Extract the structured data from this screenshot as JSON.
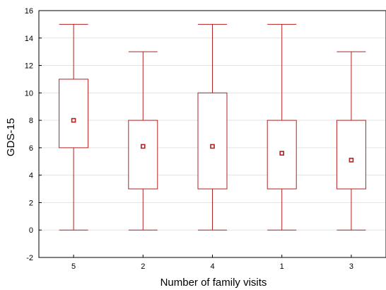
{
  "chart_data": {
    "type": "box",
    "title": "",
    "xlabel": "Number of family visits",
    "ylabel": "GDS-15",
    "ylim": [
      -2,
      16
    ],
    "yticks": [
      -2,
      0,
      2,
      4,
      6,
      8,
      10,
      12,
      14,
      16
    ],
    "grid": true,
    "colors": {
      "box": "#b22222",
      "median_marker": "#b22222",
      "grid": "#e3e3e3",
      "axis": "#000000"
    },
    "categories": [
      "5",
      "2",
      "4",
      "1",
      "3"
    ],
    "boxes": [
      {
        "category": "5",
        "min": 0,
        "q1": 6,
        "median": 8.0,
        "q3": 11,
        "max": 15
      },
      {
        "category": "2",
        "min": 0,
        "q1": 3,
        "median": 6.1,
        "q3": 8,
        "max": 13
      },
      {
        "category": "4",
        "min": 0,
        "q1": 3,
        "median": 6.1,
        "q3": 10,
        "max": 15
      },
      {
        "category": "1",
        "min": 0,
        "q1": 3,
        "median": 5.6,
        "q3": 8,
        "max": 15
      },
      {
        "category": "3",
        "min": 0,
        "q1": 3,
        "median": 5.1,
        "q3": 8,
        "max": 13
      }
    ]
  }
}
